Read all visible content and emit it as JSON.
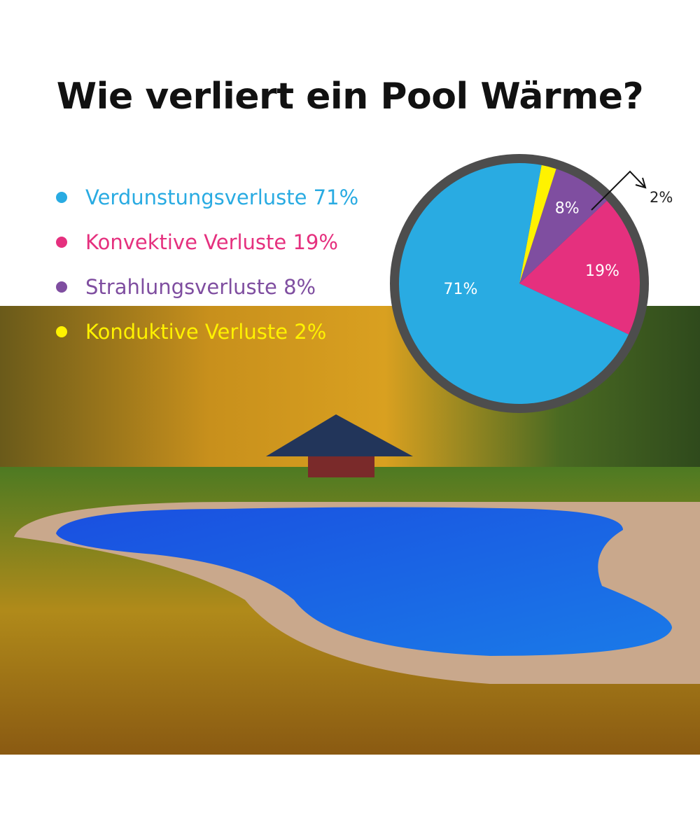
{
  "title": "Wie verliert ein Pool Wärme?",
  "chart_data": {
    "type": "pie",
    "categories": [
      "Verdunstungsverluste",
      "Konvektive Verluste",
      "Strahlungsverluste",
      "Konduktive Verluste"
    ],
    "values": [
      71,
      19,
      8,
      2
    ],
    "colors": [
      "#29abe2",
      "#e5307e",
      "#7f4ea0",
      "#fff200"
    ],
    "legend_labels": [
      "Verdunstungsverluste 71%",
      "Konvektive Verluste 19%",
      "Strahlungsverluste 8%",
      "Konduktive Verluste 2%"
    ],
    "data_labels": [
      "71%",
      "19%",
      "8%",
      "2%"
    ],
    "legend_placement": "left"
  }
}
